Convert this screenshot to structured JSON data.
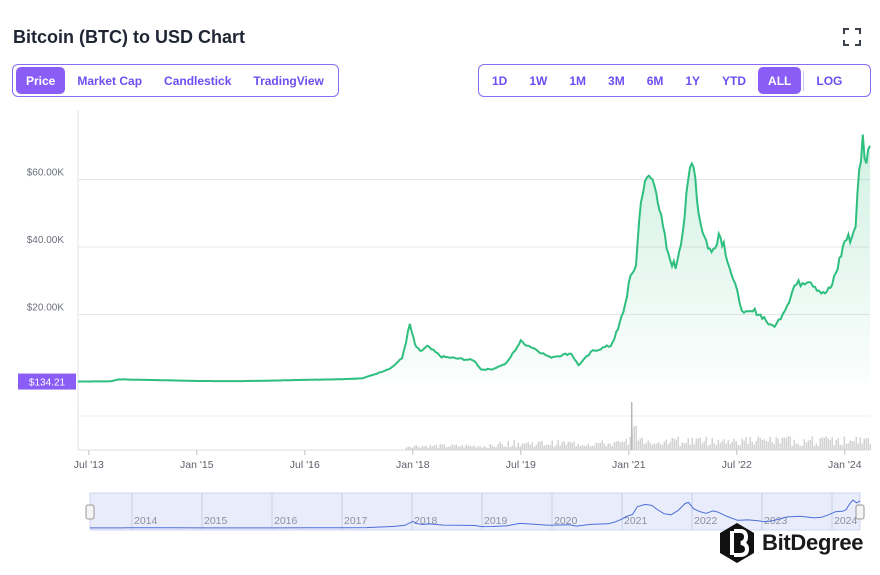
{
  "header": {
    "title": "Bitcoin (BTC) to USD Chart"
  },
  "tabs": [
    {
      "label": "Price",
      "active": true
    },
    {
      "label": "Market Cap",
      "active": false
    },
    {
      "label": "Candlestick",
      "active": false
    },
    {
      "label": "TradingView",
      "active": false
    }
  ],
  "ranges": [
    {
      "label": "1D",
      "active": false
    },
    {
      "label": "1W",
      "active": false
    },
    {
      "label": "1M",
      "active": false
    },
    {
      "label": "3M",
      "active": false
    },
    {
      "label": "6M",
      "active": false
    },
    {
      "label": "1Y",
      "active": false
    },
    {
      "label": "YTD",
      "active": false
    },
    {
      "label": "ALL",
      "active": true
    }
  ],
  "log_label": "LOG",
  "icons": {
    "fullscreen": "fullscreen-icon",
    "handle": "grip-handle-icon",
    "brand": "bitdegree-logo-icon"
  },
  "watermark": {
    "text": "BitDegree"
  },
  "colors": {
    "accent": "#8a5ef6",
    "line": "#2ebf7f",
    "area": "#e6f7ef",
    "volume": "#c8c8c8",
    "navigator": "#e9ecfb",
    "price_tag": "#8a5ef6"
  },
  "chart_data": {
    "type": "area",
    "title": "",
    "xlabel": "",
    "ylabel": "",
    "ylim": [
      0,
      80000
    ],
    "grid": true,
    "current_price_label": "$134.21",
    "current_price_value": 134.21,
    "y_ticks": [
      {
        "value": 20000,
        "label": "$20.00K"
      },
      {
        "value": 40000,
        "label": "$40.00K"
      },
      {
        "value": 60000,
        "label": "$60.00K"
      }
    ],
    "x_ticks": [
      {
        "x": 2013.5,
        "label": "Jul '13"
      },
      {
        "x": 2015.0,
        "label": "Jan '15"
      },
      {
        "x": 2016.5,
        "label": "Jul '16"
      },
      {
        "x": 2018.0,
        "label": "Jan '18"
      },
      {
        "x": 2019.5,
        "label": "Jul '19"
      },
      {
        "x": 2021.0,
        "label": "Jan '21"
      },
      {
        "x": 2022.5,
        "label": "Jul '22"
      },
      {
        "x": 2024.0,
        "label": "Jan '24"
      }
    ],
    "xlim": [
      2013.35,
      2024.35
    ],
    "navigator_years": [
      "2014",
      "2015",
      "2016",
      "2017",
      "2018",
      "2019",
      "2020",
      "2021",
      "2022",
      "2023",
      "2024"
    ],
    "series": [
      {
        "x": [
          2013.35,
          2013.8,
          2013.92,
          2014.1,
          2014.5,
          2015.0,
          2015.5,
          2016.0,
          2016.5,
          2016.95,
          2017.3,
          2017.5,
          2017.7,
          2017.85,
          2017.96,
          2018.03,
          2018.1,
          2018.2,
          2018.4,
          2018.6,
          2018.85,
          2018.95,
          2019.1,
          2019.3,
          2019.45,
          2019.5,
          2019.7,
          2019.9,
          2020.2,
          2020.3,
          2020.5,
          2020.75,
          2020.85,
          2020.95,
          2021.0,
          2021.1,
          2021.17,
          2021.28,
          2021.38,
          2021.45,
          2021.55,
          2021.65,
          2021.75,
          2021.85,
          2021.9,
          2021.97,
          2022.05,
          2022.15,
          2022.25,
          2022.32,
          2022.45,
          2022.6,
          2022.75,
          2022.88,
          2022.97,
          2023.05,
          2023.2,
          2023.3,
          2023.5,
          2023.7,
          2023.8,
          2023.9,
          2024.0,
          2024.1,
          2024.15,
          2024.2,
          2024.25,
          2024.3,
          2024.35
        ],
        "y": [
          130,
          200,
          800,
          700,
          550,
          300,
          250,
          380,
          650,
          800,
          1100,
          2500,
          4200,
          7000,
          17000,
          11000,
          9000,
          10500,
          7500,
          7000,
          6400,
          3700,
          3800,
          5500,
          10500,
          12000,
          9800,
          7300,
          8500,
          5000,
          9200,
          10800,
          15500,
          23000,
          29000,
          35000,
          55000,
          61000,
          58000,
          48000,
          37000,
          34000,
          45000,
          63000,
          66000,
          50000,
          43000,
          38000,
          44000,
          41000,
          30000,
          20000,
          21000,
          19000,
          16500,
          17000,
          23000,
          28500,
          30500,
          26000,
          27500,
          34000,
          42000,
          43000,
          47000,
          62000,
          72000,
          65000,
          70000
        ]
      }
    ]
  }
}
